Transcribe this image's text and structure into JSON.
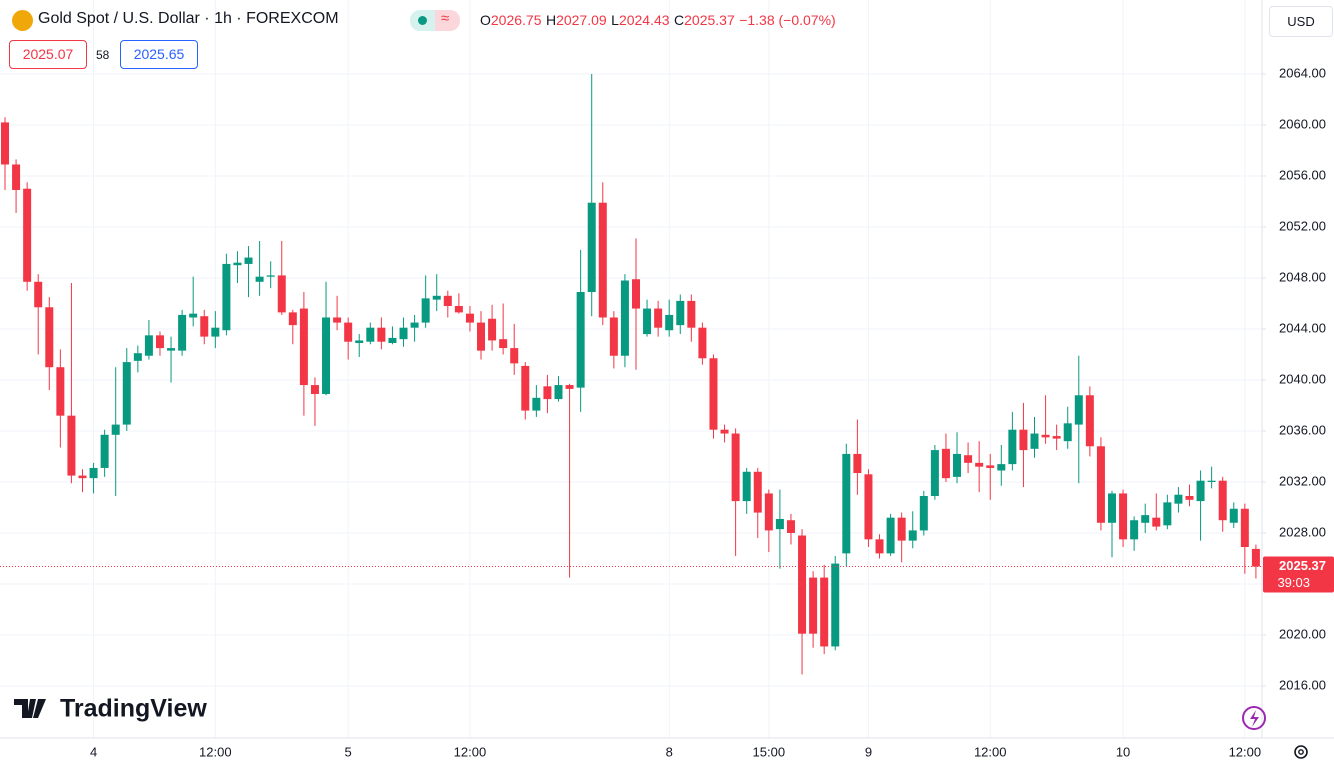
{
  "chart_data": {
    "type": "candlestick",
    "title": "Gold Spot / U.S. Dollar · 1h · FOREXCOM",
    "ohlc_labels": [
      "O",
      "H",
      "L",
      "C"
    ],
    "change": "−1.38 (−0.07%)",
    "bid": "2025.07",
    "spread": "58",
    "ask": "2025.65",
    "currency": "USD",
    "countdown": "39:03",
    "logo": "TradingView",
    "up_color": "#089981",
    "down_color": "#f23645",
    "grid": true,
    "categories": [
      null,
      null,
      null,
      null,
      null,
      null,
      null,
      null,
      "4",
      null,
      null,
      null,
      null,
      null,
      null,
      null,
      null,
      null,
      null,
      "12:00",
      null,
      null,
      null,
      null,
      null,
      null,
      null,
      null,
      null,
      null,
      null,
      "5",
      null,
      null,
      null,
      null,
      null,
      null,
      null,
      null,
      null,
      null,
      "12:00",
      null,
      null,
      null,
      null,
      null,
      null,
      null,
      null,
      null,
      null,
      null,
      null,
      null,
      null,
      null,
      null,
      null,
      "8",
      null,
      null,
      null,
      null,
      null,
      null,
      null,
      null,
      "15:00",
      null,
      null,
      null,
      null,
      null,
      null,
      null,
      null,
      "9",
      null,
      null,
      null,
      null,
      null,
      null,
      null,
      null,
      null,
      null,
      "12:00",
      null,
      null,
      null,
      null,
      null,
      null,
      null,
      null,
      null,
      null,
      null,
      "10",
      null,
      null,
      null,
      null,
      null,
      null,
      null,
      null,
      null,
      null,
      "12:00",
      null
    ],
    "open": [
      2060.2,
      2056.9,
      2055.0,
      2047.7,
      2045.7,
      2041.0,
      2037.2,
      2032.5,
      2032.3,
      2033.1,
      2035.7,
      2036.5,
      2041.5,
      2041.9,
      2043.5,
      2042.3,
      2042.3,
      2044.9,
      2045.0,
      2043.4,
      2043.9,
      2049.0,
      2049.1,
      2047.7,
      2048.1,
      2048.2,
      2045.3,
      2045.6,
      2039.6,
      2038.9,
      2044.9,
      2044.5,
      2042.9,
      2043.0,
      2044.1,
      2042.9,
      2043.2,
      2044.1,
      2044.5,
      2046.3,
      2046.6,
      2045.8,
      2045.2,
      2044.5,
      2044.8,
      2043.2,
      2042.5,
      2041.1,
      2037.6,
      2039.5,
      2038.5,
      2039.6,
      2039.4,
      2046.9,
      2053.9,
      2044.9,
      2041.9,
      2047.9,
      2043.6,
      2045.6,
      2043.9,
      2044.3,
      2046.2,
      2044.1,
      2041.7,
      2036.1,
      2035.8,
      2030.5,
      2032.8,
      2031.1,
      2028.3,
      2029.0,
      2027.8,
      2024.5,
      2024.5,
      2019.1,
      2026.4,
      2034.2,
      2032.6,
      2027.5,
      2026.4,
      2029.2,
      2027.4,
      2028.2,
      2030.9,
      2034.6,
      2032.4,
      2034.1,
      2033.5,
      2033.3,
      2032.9,
      2033.4,
      2036.1,
      2034.6,
      2035.7,
      2035.6,
      2035.2,
      2036.5,
      2038.8,
      2034.8,
      2028.8,
      2031.1,
      2027.5,
      2028.8,
      2029.2,
      2028.6,
      2030.3,
      2030.9,
      2030.5,
      2032.0,
      2032.1,
      2028.8,
      2029.9,
      2026.75
    ],
    "high": [
      2060.6,
      2057.3,
      2055.5,
      2048.3,
      2046.5,
      2042.4,
      2047.6,
      2033.0,
      2033.5,
      2036.1,
      2041.0,
      2042.5,
      2042.7,
      2044.7,
      2043.8,
      2043.4,
      2045.5,
      2048.1,
      2045.5,
      2045.4,
      2049.9,
      2050.1,
      2050.5,
      2050.9,
      2049.3,
      2050.9,
      2045.5,
      2046.9,
      2040.2,
      2047.7,
      2046.6,
      2044.9,
      2043.6,
      2044.5,
      2044.9,
      2044.2,
      2044.9,
      2045.1,
      2048.2,
      2048.3,
      2047.0,
      2046.8,
      2045.8,
      2045.4,
      2045.9,
      2046.0,
      2044.4,
      2041.4,
      2039.6,
      2040.4,
      2040.3,
      2039.7,
      2050.2,
      2064.0,
      2055.5,
      2045.4,
      2048.3,
      2051.1,
      2046.3,
      2046.2,
      2046.3,
      2046.7,
      2046.7,
      2044.5,
      2042.0,
      2036.5,
      2036.2,
      2033.1,
      2033.1,
      2031.4,
      2031.4,
      2029.5,
      2028.3,
      2025.0,
      2025.5,
      2026.2,
      2035.0,
      2036.9,
      2033.0,
      2027.9,
      2029.5,
      2029.6,
      2029.7,
      2031.3,
      2034.9,
      2035.8,
      2035.9,
      2035.1,
      2035.2,
      2034.2,
      2034.9,
      2037.5,
      2038.2,
      2037.1,
      2038.8,
      2036.5,
      2037.9,
      2041.9,
      2039.5,
      2035.5,
      2031.3,
      2031.4,
      2029.3,
      2030.3,
      2031.1,
      2031.0,
      2031.6,
      2031.8,
      2032.9,
      2033.2,
      2032.4,
      2030.4,
      2030.3,
      2027.09
    ],
    "low": [
      2054.9,
      2053.1,
      2047.0,
      2042.0,
      2039.2,
      2034.7,
      2031.9,
      2031.2,
      2031.1,
      2032.4,
      2030.9,
      2036.0,
      2040.6,
      2041.6,
      2041.9,
      2039.8,
      2041.9,
      2044.2,
      2042.8,
      2042.5,
      2043.5,
      2047.6,
      2046.5,
      2046.6,
      2047.2,
      2045.1,
      2042.8,
      2037.2,
      2036.4,
      2038.8,
      2043.9,
      2041.6,
      2041.8,
      2042.8,
      2042.4,
      2042.8,
      2042.6,
      2043.0,
      2044.1,
      2045.4,
      2044.9,
      2045.2,
      2043.8,
      2041.6,
      2042.3,
      2042.0,
      2040.4,
      2036.9,
      2037.1,
      2037.4,
      2038.3,
      2024.5,
      2037.5,
      2045.0,
      2044.3,
      2040.9,
      2041.0,
      2040.8,
      2043.4,
      2043.4,
      2043.4,
      2043.6,
      2043.0,
      2041.2,
      2035.4,
      2035.1,
      2026.2,
      2029.5,
      2027.6,
      2026.5,
      2025.2,
      2027.1,
      2016.9,
      2019.0,
      2018.5,
      2018.8,
      2025.4,
      2031.0,
      2026.9,
      2026.0,
      2026.2,
      2025.7,
      2026.8,
      2027.8,
      2030.6,
      2032.0,
      2031.9,
      2032.7,
      2031.2,
      2030.6,
      2031.7,
      2032.9,
      2031.6,
      2033.9,
      2035.0,
      2034.5,
      2034.6,
      2031.9,
      2034.0,
      2028.2,
      2026.1,
      2026.9,
      2026.6,
      2028.0,
      2028.2,
      2028.3,
      2029.6,
      2030.1,
      2027.4,
      2031.5,
      2028.1,
      2028.4,
      2024.8,
      2024.43
    ],
    "close": [
      2056.9,
      2054.9,
      2047.7,
      2045.7,
      2041.0,
      2037.2,
      2032.5,
      2032.3,
      2033.1,
      2035.7,
      2036.5,
      2041.4,
      2042.1,
      2043.5,
      2042.5,
      2042.5,
      2045.1,
      2045.2,
      2043.4,
      2044.1,
      2049.1,
      2049.2,
      2049.6,
      2048.1,
      2048.2,
      2045.3,
      2044.3,
      2039.6,
      2038.9,
      2044.9,
      2044.5,
      2043.0,
      2043.1,
      2044.1,
      2043.0,
      2043.3,
      2044.1,
      2044.5,
      2046.4,
      2046.6,
      2045.8,
      2045.3,
      2044.5,
      2042.3,
      2043.1,
      2042.5,
      2041.3,
      2037.6,
      2038.6,
      2038.5,
      2039.6,
      2039.3,
      2046.9,
      2053.9,
      2044.9,
      2041.9,
      2047.8,
      2045.6,
      2045.6,
      2044.1,
      2045.1,
      2046.2,
      2044.1,
      2041.7,
      2036.1,
      2035.8,
      2030.5,
      2032.8,
      2029.6,
      2028.2,
      2029.1,
      2028.0,
      2020.1,
      2020.1,
      2019.1,
      2025.6,
      2034.2,
      2032.7,
      2027.5,
      2026.4,
      2029.2,
      2027.4,
      2028.2,
      2030.9,
      2034.5,
      2032.3,
      2034.2,
      2033.5,
      2033.2,
      2033.1,
      2033.4,
      2036.1,
      2034.5,
      2035.8,
      2035.5,
      2035.4,
      2036.6,
      2038.8,
      2034.8,
      2028.8,
      2031.1,
      2027.5,
      2029.0,
      2029.4,
      2028.5,
      2030.4,
      2031.0,
      2030.6,
      2032.1,
      2032.1,
      2029.0,
      2029.9,
      2026.9,
      2025.37
    ],
    "ylim": [
      2011.92,
      2069.8
    ],
    "yticks": [
      {
        "value": 2016,
        "label": "2016.00"
      },
      {
        "value": 2020,
        "label": "2020.00"
      },
      {
        "value": 2024,
        "label": "2024.00"
      },
      {
        "value": 2028,
        "label": "2028.00"
      },
      {
        "value": 2032,
        "label": "2032.00"
      },
      {
        "value": 2036,
        "label": "2036.00"
      },
      {
        "value": 2040,
        "label": "2040.00"
      },
      {
        "value": 2044,
        "label": "2044.00"
      },
      {
        "value": 2048,
        "label": "2048.00"
      },
      {
        "value": 2052,
        "label": "2052.00"
      },
      {
        "value": 2056,
        "label": "2056.00"
      },
      {
        "value": 2060,
        "label": "2060.00"
      },
      {
        "value": 2064,
        "label": "2064.00"
      }
    ]
  }
}
